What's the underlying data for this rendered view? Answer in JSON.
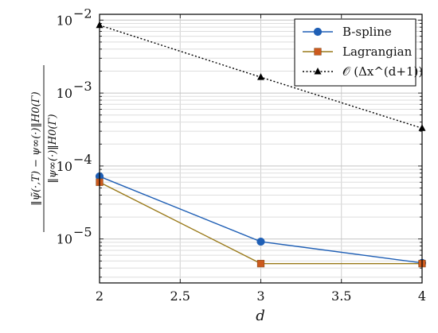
{
  "chart_data": {
    "type": "line",
    "xlabel": "d",
    "ylabel_numerator": "‖ψ̃(·,T) − ψ∞(·)‖H0(Γ)",
    "ylabel_denominator": "‖ψ∞(·)‖H0(Γ)",
    "x_scale": "linear",
    "y_scale": "log",
    "xlim": [
      2,
      4
    ],
    "ylim": [
      2.5e-06,
      0.012
    ],
    "x_ticks": [
      "2",
      "2.5",
      "3",
      "3.5",
      "4"
    ],
    "y_ticks": [
      {
        "base": "10",
        "exp": "−5",
        "value": 1e-05
      },
      {
        "base": "10",
        "exp": "−4",
        "value": 0.0001
      },
      {
        "base": "10",
        "exp": "−3",
        "value": 0.001
      },
      {
        "base": "10",
        "exp": "−2",
        "value": 0.01
      }
    ],
    "grid": true,
    "legend_position": "top-right",
    "series": [
      {
        "name": "B-spline",
        "color": "#1f5fb5",
        "marker": "circle",
        "line": "solid",
        "x": [
          2,
          3,
          4
        ],
        "y": [
          7.2e-05,
          9.2e-06,
          4.7e-06
        ]
      },
      {
        "name": "Lagrangian",
        "color": "#cc5a1e",
        "line_color": "#9a7a1a",
        "marker": "square",
        "line": "solid",
        "x": [
          2,
          3,
          4
        ],
        "y": [
          6e-05,
          4.6e-06,
          4.6e-06
        ]
      },
      {
        "name": "𝒪 (Δx^(d+1))",
        "color": "#000000",
        "marker": "triangle",
        "line": "dotted",
        "x": [
          2,
          3,
          4
        ],
        "y": [
          0.0085,
          0.00165,
          0.00033
        ]
      }
    ]
  }
}
